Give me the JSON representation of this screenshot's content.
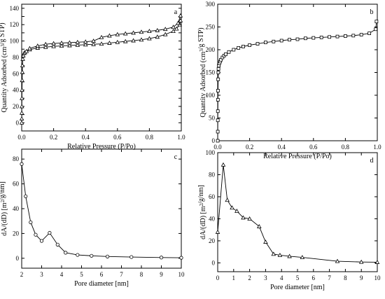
{
  "chart_data": [
    {
      "type": "line",
      "panel_label": "a",
      "xlabel": "Relative Pressure (P/Po)",
      "ylabel": "Quantity Adsorbed (cm³/g STP)",
      "xlim": [
        0,
        1
      ],
      "ylim": [
        -10,
        145
      ],
      "xticks": [
        0.0,
        0.2,
        0.4,
        0.6,
        0.8,
        1.0
      ],
      "xtick_labels": [
        "0.0",
        "0.2",
        "0.4",
        "0.6",
        "0.8",
        "1.0"
      ],
      "yticks": [
        0,
        10,
        20,
        30,
        40,
        50,
        60,
        70,
        80,
        90,
        100,
        110,
        120,
        130,
        140
      ],
      "ytick_labels": [
        "0",
        "",
        "20",
        "",
        "40",
        "",
        "60",
        "",
        "80",
        "",
        "100",
        "",
        "120",
        "",
        "140"
      ],
      "series": [
        {
          "marker": "triangle",
          "x": [
            0.0002,
            0.0004,
            0.0007,
            0.001,
            0.0015,
            0.002,
            0.003,
            0.004,
            0.005,
            0.007,
            0.01,
            0.015,
            0.02,
            0.03,
            0.05,
            0.1,
            0.15,
            0.2,
            0.25,
            0.3,
            0.35,
            0.4,
            0.45,
            0.5,
            0.55,
            0.6,
            0.65,
            0.7,
            0.75,
            0.8,
            0.85,
            0.9,
            0.95,
            0.97,
            0.99,
            0.995
          ],
          "y": [
            0,
            5,
            12,
            20,
            30,
            40,
            52,
            62,
            70,
            78,
            82,
            85,
            86,
            87.5,
            89.5,
            91.5,
            92.5,
            93.5,
            94,
            94.5,
            95,
            95.5,
            96,
            96.5,
            97.5,
            98.5,
            99.5,
            100.5,
            101.5,
            103,
            105,
            108,
            112,
            115,
            120,
            125
          ]
        },
        {
          "marker": "triangle",
          "x": [
            0.995,
            0.98,
            0.95,
            0.9,
            0.85,
            0.8,
            0.75,
            0.7,
            0.65,
            0.6,
            0.55,
            0.5,
            0.45,
            0.4,
            0.35,
            0.3,
            0.25,
            0.2,
            0.15,
            0.1,
            0.05
          ],
          "y": [
            131,
            122,
            117,
            114.5,
            113,
            112,
            111,
            110,
            109,
            108,
            106.5,
            104.5,
            100,
            99,
            98.5,
            98,
            97.5,
            97,
            96,
            94,
            91
          ]
        }
      ]
    },
    {
      "type": "line",
      "panel_label": "b",
      "xlabel": "Relative Pressure (P/Po)",
      "ylabel": "Quantity Adsorbed (cm³/g STP)",
      "xlim": [
        0,
        1
      ],
      "ylim": [
        0,
        300
      ],
      "xticks": [
        0.0,
        0.2,
        0.4,
        0.6,
        0.8,
        1.0
      ],
      "xtick_labels": [
        "0.0",
        "0.2",
        "0.4",
        "0.6",
        "0.8",
        "1.0"
      ],
      "yticks": [
        0,
        50,
        100,
        150,
        200,
        250,
        300
      ],
      "ytick_labels": [
        "0",
        "50",
        "100",
        "150",
        "200",
        "250",
        "300"
      ],
      "series": [
        {
          "marker": "square",
          "x": [
            0.0003,
            0.0005,
            0.0008,
            0.001,
            0.0015,
            0.002,
            0.003,
            0.004,
            0.005,
            0.007,
            0.01,
            0.015,
            0.02,
            0.03,
            0.04,
            0.05,
            0.07,
            0.1,
            0.13,
            0.16,
            0.2,
            0.25,
            0.3,
            0.35,
            0.4,
            0.45,
            0.5,
            0.55,
            0.6,
            0.65,
            0.7,
            0.75,
            0.8,
            0.85,
            0.9,
            0.95,
            0.99,
            0.995
          ],
          "y": [
            0,
            20,
            45,
            65,
            90,
            110,
            135,
            150,
            158,
            165,
            170,
            174,
            178,
            183,
            187,
            190,
            195,
            200,
            204,
            207,
            210,
            213,
            216,
            218,
            220,
            222,
            223,
            225,
            226,
            227,
            228,
            229,
            230,
            231,
            233,
            236,
            245,
            262
          ]
        }
      ]
    },
    {
      "type": "line",
      "panel_label": "c",
      "xlabel": "Pore diameter [nm]",
      "ylabel": "dA/(dD) [m²/g/nm]",
      "xlim": [
        2,
        10
      ],
      "ylim": [
        -8,
        88
      ],
      "xticks": [
        2,
        3,
        4,
        5,
        6,
        7,
        8,
        9,
        10
      ],
      "xtick_labels": [
        "2",
        "3",
        "4",
        "5",
        "6",
        "7",
        "8",
        "9",
        "10"
      ],
      "yticks": [
        0,
        20,
        40,
        60,
        80
      ],
      "ytick_labels": [
        "0",
        "20",
        "40",
        "60",
        "80"
      ],
      "series": [
        {
          "marker": "circle",
          "x": [
            2.0,
            2.2,
            2.45,
            2.7,
            3.0,
            3.4,
            3.8,
            4.2,
            4.8,
            5.5,
            6.3,
            7.5,
            9.0,
            10.0
          ],
          "y": [
            76,
            50,
            29,
            19,
            14,
            20.5,
            11,
            4.5,
            2.7,
            2.0,
            1.4,
            1.0,
            0.6,
            0.4
          ]
        }
      ]
    },
    {
      "type": "line",
      "panel_label": "d",
      "xlabel": "Pore diameter [nm]",
      "ylabel": "dA/(dD) [m²/g/nm]",
      "xlim": [
        0,
        10
      ],
      "ylim": [
        -8,
        100
      ],
      "xticks": [
        0,
        1,
        2,
        3,
        4,
        5,
        6,
        7,
        8,
        9,
        10
      ],
      "xtick_labels": [
        "0",
        "1",
        "2",
        "3",
        "4",
        "5",
        "6",
        "7",
        "8",
        "9",
        "10"
      ],
      "yticks": [
        0,
        20,
        40,
        60,
        80,
        100
      ],
      "ytick_labels": [
        "0",
        "20",
        "40",
        "60",
        "80",
        "100"
      ],
      "series": [
        {
          "marker": "triangle",
          "x": [
            0.0,
            0.35,
            0.6,
            0.9,
            1.2,
            1.6,
            2.0,
            2.6,
            3.0,
            3.5,
            3.9,
            4.5,
            5.3,
            7.5,
            9.0,
            10.0
          ],
          "y": [
            28,
            89,
            57,
            50,
            47,
            41,
            40,
            33,
            19,
            8,
            7,
            6,
            5,
            1.5,
            0.8,
            0.6
          ]
        }
      ]
    }
  ]
}
